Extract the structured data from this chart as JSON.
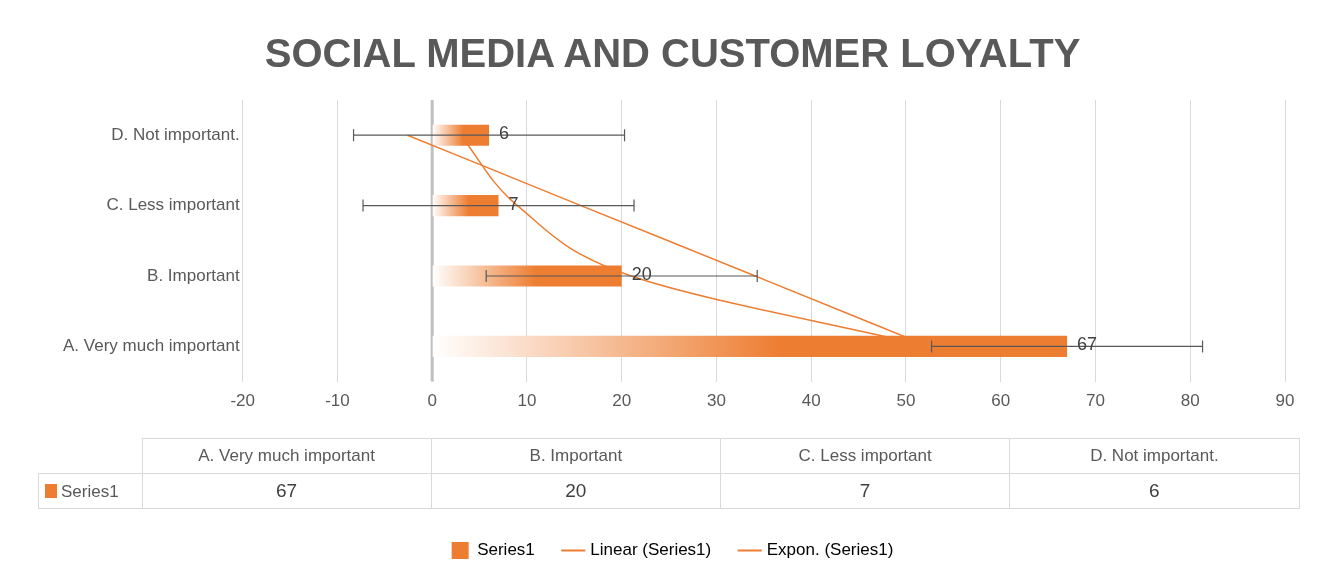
{
  "chart_data": {
    "type": "bar",
    "orientation": "horizontal",
    "title": "SOCIAL MEDIA AND CUSTOMER LOYALTY",
    "categories": [
      "D. Not important.",
      "C. Less important",
      "B. Important",
      "A. Very much important"
    ],
    "series": [
      {
        "name": "Series1",
        "color": "#ed7d31",
        "values": [
          6,
          7,
          20,
          67
        ],
        "errors": [
          14.3,
          14.3,
          14.3,
          14.3
        ],
        "value_labels": [
          "6",
          "7",
          "20",
          "67"
        ]
      },
      {
        "name": "Linear (Series1)",
        "type": "line",
        "color": "#ed7d31",
        "values": [
          -2.6,
          15.7,
          34.1,
          52.4
        ]
      },
      {
        "name": "Expon. (Series1)",
        "type": "line",
        "color": "#ed7d31",
        "values": [
          3,
          9,
          21,
          52.4
        ]
      }
    ],
    "xlim": [
      -20,
      90
    ],
    "xticks": [
      -20,
      -10,
      0,
      10,
      20,
      30,
      40,
      50,
      60,
      70,
      80,
      90
    ],
    "grid": "x",
    "legend": "bottom",
    "marker": "none"
  }
}
